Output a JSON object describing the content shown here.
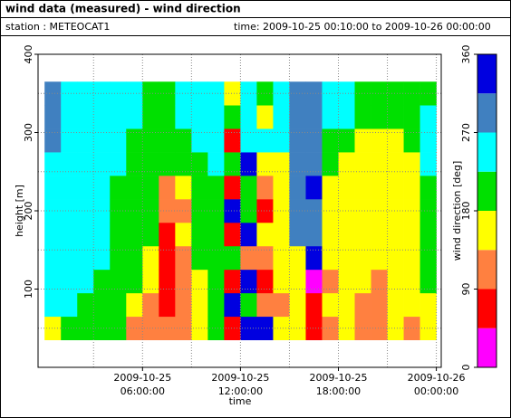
{
  "chart_data": {
    "type": "heatmap",
    "title": "wind data (measured) - wind direction",
    "station": "station : METEOCAT1",
    "time_range": "time: 2009-10-25 00:10:00 to 2009-10-26 00:00:00",
    "x_label": "time",
    "y_label": "height [m]",
    "colorbar_label": "wind direction [deg]",
    "xlim": [
      -0.4,
      24.3
    ],
    "ylim": [
      0,
      400
    ],
    "xticks": [
      {
        "value": 6,
        "label": "2009-10-25 06:00:00"
      },
      {
        "value": 12,
        "label": "2009-10-25 12:00:00"
      },
      {
        "value": 18,
        "label": "2009-10-25 18:00:00"
      },
      {
        "value": 24,
        "label": "2009-10-26 00:00:00"
      }
    ],
    "yticks": [
      100,
      200,
      300,
      400
    ],
    "x_minor_grid": [
      3,
      9,
      15,
      21
    ],
    "y_minor_grid": [
      50,
      150,
      250,
      350
    ],
    "grid": true,
    "x_bins": [
      0,
      1,
      2,
      3,
      4,
      5,
      6,
      7,
      8,
      9,
      10,
      11,
      12,
      13,
      14,
      15,
      16,
      17,
      18,
      19,
      20,
      21,
      22,
      23,
      24
    ],
    "y_bins": [
      35,
      65,
      95,
      125,
      155,
      185,
      215,
      245,
      275,
      305,
      335,
      365
    ],
    "values": [
      [
        160,
        250,
        250,
        250,
        250,
        250,
        250,
        250,
        290,
        290,
        290
      ],
      [
        200,
        250,
        250,
        250,
        250,
        250,
        250,
        250,
        250,
        250,
        250
      ],
      [
        200,
        200,
        250,
        250,
        250,
        250,
        250,
        250,
        250,
        250,
        250
      ],
      [
        200,
        200,
        200,
        250,
        250,
        250,
        250,
        250,
        250,
        250,
        250
      ],
      [
        200,
        200,
        200,
        200,
        200,
        200,
        200,
        250,
        250,
        250,
        250
      ],
      [
        110,
        160,
        200,
        200,
        200,
        200,
        200,
        200,
        200,
        250,
        250
      ],
      [
        110,
        110,
        160,
        160,
        200,
        200,
        200,
        200,
        200,
        200,
        200
      ],
      [
        110,
        70,
        70,
        70,
        70,
        110,
        110,
        200,
        200,
        200,
        200
      ],
      [
        110,
        110,
        110,
        110,
        160,
        110,
        160,
        200,
        200,
        250,
        250
      ],
      [
        160,
        160,
        160,
        200,
        200,
        200,
        200,
        200,
        250,
        250,
        250
      ],
      [
        200,
        200,
        200,
        200,
        200,
        200,
        200,
        250,
        250,
        250,
        250
      ],
      [
        70,
        340,
        70,
        200,
        70,
        340,
        70,
        200,
        70,
        200,
        160
      ],
      [
        340,
        200,
        340,
        110,
        340,
        200,
        200,
        340,
        250,
        250,
        250
      ],
      [
        340,
        110,
        70,
        110,
        160,
        70,
        110,
        160,
        250,
        160,
        200
      ],
      [
        160,
        110,
        160,
        160,
        160,
        160,
        160,
        160,
        250,
        250,
        250
      ],
      [
        160,
        160,
        160,
        160,
        290,
        290,
        290,
        290,
        290,
        290,
        290
      ],
      [
        70,
        70,
        20,
        340,
        290,
        290,
        340,
        290,
        290,
        290,
        290
      ],
      [
        110,
        160,
        110,
        160,
        160,
        160,
        160,
        200,
        200,
        250,
        250
      ],
      [
        160,
        160,
        160,
        160,
        160,
        160,
        160,
        160,
        200,
        250,
        250
      ],
      [
        110,
        110,
        160,
        160,
        160,
        160,
        160,
        160,
        160,
        200,
        200
      ],
      [
        110,
        110,
        110,
        160,
        160,
        160,
        160,
        160,
        160,
        200,
        200
      ],
      [
        160,
        160,
        160,
        160,
        160,
        160,
        160,
        160,
        160,
        200,
        200
      ],
      [
        110,
        160,
        160,
        160,
        160,
        160,
        160,
        160,
        200,
        200,
        200
      ],
      [
        160,
        160,
        200,
        200,
        200,
        200,
        200,
        250,
        250,
        250,
        200
      ]
    ],
    "colorscale": {
      "bounds": [
        0,
        45,
        90,
        135,
        180,
        225,
        270,
        315,
        360
      ],
      "colors": [
        "#ff00ff",
        "#ff0000",
        "#ff8040",
        "#ffff00",
        "#00e000",
        "#00ffff",
        "#4080c0",
        "#0000e0"
      ]
    },
    "clim": [
      0,
      360
    ],
    "cticks": [
      0,
      90,
      180,
      270,
      360
    ]
  }
}
